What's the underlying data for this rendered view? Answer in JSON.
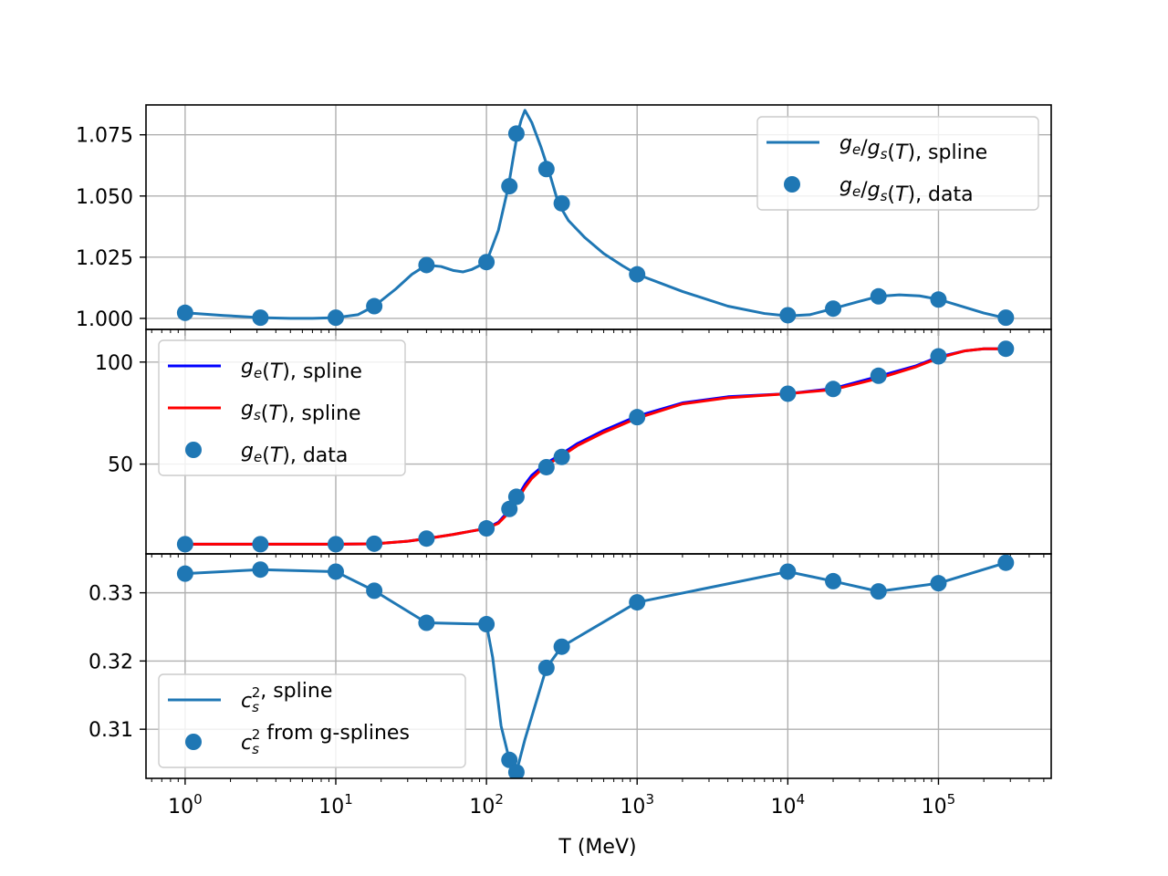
{
  "colors": {
    "series_blue": "#1f77b4",
    "ge_spline": "#0000ff",
    "gs_spline": "#ff0000",
    "grid": "#b0b0b0",
    "frame": "#000000"
  },
  "chart_data": [
    {
      "type": "line",
      "panel": "top",
      "xscale": "log",
      "xlim": [
        0.55,
        560000
      ],
      "ylim": [
        0.9955,
        1.0872
      ],
      "grid": true,
      "legend_position": "top-right",
      "x_ticks": [
        1,
        10,
        100,
        1000,
        10000,
        100000
      ],
      "x_tick_labels": [
        {
          "base": "10",
          "exp": "0"
        },
        {
          "base": "10",
          "exp": "1"
        },
        {
          "base": "10",
          "exp": "2"
        },
        {
          "base": "10",
          "exp": "3"
        },
        {
          "base": "10",
          "exp": "4"
        },
        {
          "base": "10",
          "exp": "5"
        }
      ],
      "y_ticks": [
        1.0,
        1.025,
        1.05,
        1.075
      ],
      "y_tick_labels": [
        "1.000",
        "1.025",
        "1.050",
        "1.075"
      ],
      "legend": [
        {
          "kind": "line",
          "color": "#1f77b4",
          "label": {
            "math": "g_e/g_s(T)",
            "suffix": ", spline"
          }
        },
        {
          "kind": "marker",
          "color": "#1f77b4",
          "label": {
            "math": "g_e/g_s(T)",
            "suffix": ", data"
          }
        }
      ],
      "series": [
        {
          "kind": "line",
          "color": "#1f77b4",
          "x": [
            1,
            1.8,
            3.16,
            5,
            7,
            10,
            14,
            18,
            25,
            32,
            40,
            50,
            60,
            70,
            80,
            100,
            120,
            140,
            150,
            160,
            170,
            180,
            200,
            230,
            260,
            300,
            350,
            450,
            600,
            800,
            1000,
            2000,
            4000,
            7000,
            10000,
            14000,
            20000,
            30000,
            40000,
            55000,
            75000,
            100000,
            150000,
            200000,
            280000
          ],
          "y": [
            1.0023,
            1.0012,
            1.0003,
            1.0,
            1.0,
            1.0003,
            1.0015,
            1.005,
            1.012,
            1.018,
            1.0218,
            1.0212,
            1.0196,
            1.019,
            1.02,
            1.023,
            1.036,
            1.054,
            1.065,
            1.075,
            1.081,
            1.085,
            1.08,
            1.07,
            1.06,
            1.047,
            1.04,
            1.033,
            1.0265,
            1.0215,
            1.018,
            1.011,
            1.005,
            1.002,
            1.001,
            1.0015,
            1.004,
            1.007,
            1.009,
            1.0096,
            1.0092,
            1.0078,
            1.0045,
            1.0022,
            1.0001
          ]
        },
        {
          "kind": "scatter",
          "color": "#1f77b4",
          "x": [
            1,
            3.16,
            10,
            18,
            40,
            100,
            142,
            158,
            250,
            316,
            1000,
            10000,
            20000,
            40000,
            100000,
            280000
          ],
          "y": [
            1.0023,
            1.0003,
            1.0003,
            1.005,
            1.0218,
            1.023,
            1.054,
            1.0755,
            1.061,
            1.047,
            1.018,
            1.0013,
            1.004,
            1.009,
            1.0077,
            1.0003
          ]
        }
      ]
    },
    {
      "type": "line",
      "panel": "middle",
      "xscale": "log",
      "xlim": [
        0.55,
        560000
      ],
      "ylim": [
        6,
        116
      ],
      "grid": true,
      "legend_position": "upper-left",
      "y_ticks": [
        50,
        100
      ],
      "y_tick_labels": [
        "50",
        "100"
      ],
      "y_gridlines": [
        0,
        50,
        100
      ],
      "legend": [
        {
          "kind": "line",
          "color": "#0000ff",
          "label": {
            "math": "g_e(T)",
            "suffix": ", spline"
          }
        },
        {
          "kind": "line",
          "color": "#ff0000",
          "label": {
            "math": "g_s(T)",
            "suffix": ", spline"
          }
        },
        {
          "kind": "marker",
          "color": "#1f77b4",
          "label": {
            "math": "g_e(T)",
            "suffix": ", data"
          }
        }
      ],
      "series": [
        {
          "kind": "line",
          "color": "#0000ff",
          "x": [
            1,
            3.16,
            10,
            18,
            30,
            40,
            60,
            100,
            120,
            142,
            158,
            180,
            200,
            250,
            316,
            400,
            600,
            1000,
            2000,
            4000,
            10000,
            20000,
            40000,
            70000,
            100000,
            150000,
            200000,
            280000
          ],
          "y": [
            10.75,
            10.75,
            10.75,
            10.9,
            12.2,
            13.5,
            15.5,
            18.5,
            21.5,
            27.5,
            33.0,
            40.0,
            44.5,
            50.5,
            55.0,
            60.0,
            66.5,
            73.5,
            80.0,
            83.0,
            84.5,
            87.0,
            93.0,
            98.0,
            102.5,
            105.5,
            106.5,
            106.5
          ]
        },
        {
          "kind": "line",
          "color": "#ff0000",
          "x": [
            1,
            3.16,
            10,
            18,
            30,
            40,
            60,
            100,
            120,
            142,
            158,
            180,
            200,
            250,
            316,
            400,
            600,
            1000,
            2000,
            4000,
            10000,
            20000,
            40000,
            70000,
            100000,
            150000,
            200000,
            280000
          ],
          "y": [
            10.75,
            10.75,
            10.75,
            10.9,
            12.2,
            13.5,
            15.5,
            18.5,
            21.0,
            26.5,
            31.5,
            38.5,
            43.0,
            49.5,
            54.0,
            59.0,
            65.5,
            72.5,
            79.5,
            82.5,
            84.5,
            86.5,
            92.0,
            97.5,
            102.0,
            105.5,
            106.5,
            106.5
          ]
        },
        {
          "kind": "scatter",
          "color": "#1f77b4",
          "x": [
            1,
            3.16,
            10,
            18,
            40,
            100,
            142,
            158,
            250,
            316,
            1000,
            10000,
            20000,
            40000,
            100000,
            280000
          ],
          "y": [
            10.75,
            10.75,
            10.75,
            11.0,
            13.5,
            18.5,
            28.0,
            34.0,
            48.5,
            53.5,
            73.0,
            84.5,
            86.8,
            93.3,
            102.8,
            106.5
          ]
        }
      ]
    },
    {
      "type": "line",
      "panel": "bottom",
      "xscale": "log",
      "xlim": [
        0.55,
        560000
      ],
      "xlabel": "T (MeV)",
      "ylim": [
        0.3028,
        0.3357
      ],
      "grid": true,
      "legend_position": "lower-left",
      "y_ticks": [
        0.31,
        0.32,
        0.33
      ],
      "y_tick_labels": [
        "0.31",
        "0.32",
        "0.33"
      ],
      "legend": [
        {
          "kind": "line",
          "color": "#1f77b4",
          "label": {
            "math": "c_s^2",
            "suffix": ", spline"
          }
        },
        {
          "kind": "marker",
          "color": "#1f77b4",
          "label": {
            "math": "c_s^2",
            "suffix": " from g-splines"
          }
        }
      ],
      "series": [
        {
          "kind": "line",
          "color": "#1f77b4",
          "x": [
            1,
            3.16,
            10,
            18,
            40,
            100,
            110,
            125,
            142,
            158,
            180,
            250,
            316,
            1000,
            10000,
            20000,
            40000,
            100000,
            280000
          ],
          "y": [
            0.3328,
            0.3334,
            0.3331,
            0.3303,
            0.3256,
            0.3254,
            0.3205,
            0.3105,
            0.3055,
            0.3037,
            0.3085,
            0.319,
            0.3221,
            0.3286,
            0.3331,
            0.3317,
            0.3302,
            0.3314,
            0.3344
          ]
        },
        {
          "kind": "scatter",
          "color": "#1f77b4",
          "x": [
            1,
            3.16,
            10,
            18,
            40,
            100,
            142,
            158,
            250,
            316,
            1000,
            10000,
            20000,
            40000,
            100000,
            280000
          ],
          "y": [
            0.3328,
            0.3334,
            0.3331,
            0.3303,
            0.3256,
            0.3254,
            0.3055,
            0.3037,
            0.319,
            0.3221,
            0.3286,
            0.3331,
            0.3317,
            0.3302,
            0.3314,
            0.3344
          ]
        }
      ]
    }
  ]
}
